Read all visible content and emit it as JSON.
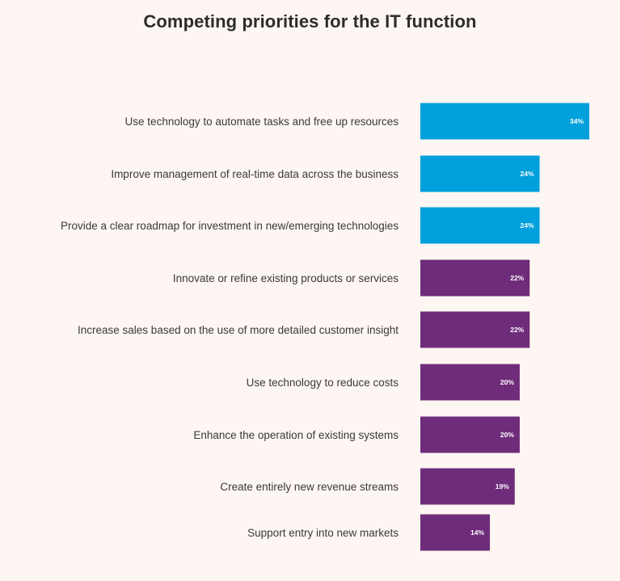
{
  "chart_data": {
    "type": "bar",
    "orientation": "horizontal",
    "title": "Competing priorities for the IT function",
    "xlabel": "",
    "ylabel": "",
    "xlim": [
      0,
      34
    ],
    "value_format": "{v}%",
    "categories": [
      "Use technology to automate tasks and free up resources",
      "Improve management of real-time data across the business",
      "Provide a clear roadmap for investment in new/emerging technologies",
      "Innovate or refine existing products or services",
      "Increase sales based on the use of more detailed customer insight",
      "Use technology to reduce costs",
      "Enhance the operation of existing systems",
      "Create entirely new revenue streams",
      "Support entry into new markets"
    ],
    "values": [
      34,
      24,
      24,
      22,
      22,
      20,
      20,
      19,
      14
    ],
    "value_labels": [
      "34%",
      "24%",
      "24%",
      "22%",
      "22%",
      "20%",
      "20%",
      "19%",
      "14%"
    ],
    "bar_colors": [
      "#00a0dc",
      "#00a0dc",
      "#00a0dc",
      "#6f2c7a",
      "#6f2c7a",
      "#6f2c7a",
      "#6f2c7a",
      "#6f2c7a",
      "#6f2c7a"
    ]
  }
}
